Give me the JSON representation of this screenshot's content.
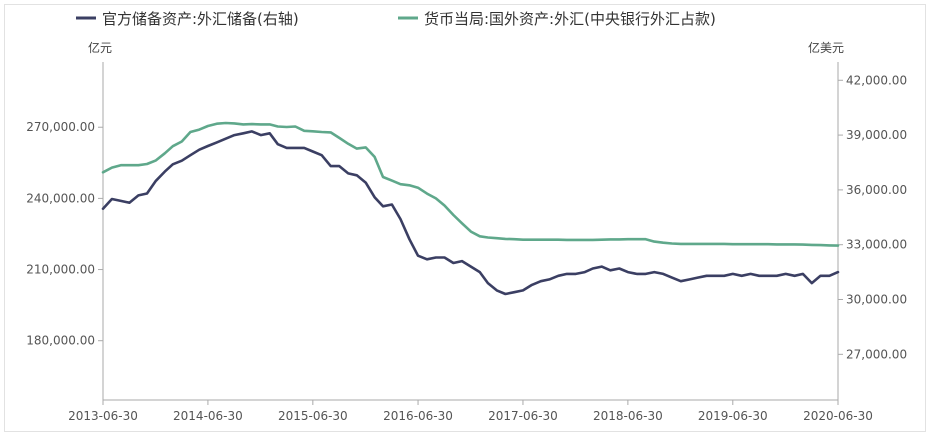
{
  "chart_data": {
    "type": "line",
    "title": "",
    "legend_position": "top-left",
    "left_unit": "亿元",
    "right_unit": "亿美元",
    "left_axis": {
      "ylim": [
        155000,
        297500
      ],
      "ticks": [
        180000,
        210000,
        240000,
        270000
      ],
      "tick_labels": [
        "180,000.00",
        "210,000.00",
        "240,000.00",
        "270,000.00"
      ]
    },
    "right_axis": {
      "ylim": [
        24500,
        43000
      ],
      "ticks": [
        27000,
        30000,
        33000,
        36000,
        39000,
        42000
      ],
      "tick_labels": [
        "27,000.00",
        "30,000.00",
        "33,000.00",
        "36,000.00",
        "39,000.00",
        "42,000.00"
      ]
    },
    "x_axis": {
      "range": [
        "2013-06-30",
        "2020-06-30"
      ],
      "tick_labels": [
        "2013-06-30",
        "2014-06-30",
        "2015-06-30",
        "2016-06-30",
        "2017-06-30",
        "2018-06-30",
        "2019-06-30",
        "2020-06-30"
      ]
    },
    "series": [
      {
        "name": "官方储备资产:外汇储备(右轴)",
        "axis": "right",
        "color": "#3b3f63",
        "x": [
          "2013-06",
          "2013-07",
          "2013-08",
          "2013-09",
          "2013-10",
          "2013-11",
          "2013-12",
          "2014-01",
          "2014-02",
          "2014-03",
          "2014-04",
          "2014-05",
          "2014-06",
          "2014-07",
          "2014-08",
          "2014-09",
          "2014-10",
          "2014-11",
          "2014-12",
          "2015-01",
          "2015-02",
          "2015-03",
          "2015-04",
          "2015-05",
          "2015-06",
          "2015-07",
          "2015-08",
          "2015-09",
          "2015-10",
          "2015-11",
          "2015-12",
          "2016-01",
          "2016-02",
          "2016-03",
          "2016-04",
          "2016-05",
          "2016-06",
          "2016-07",
          "2016-08",
          "2016-09",
          "2016-10",
          "2016-11",
          "2016-12",
          "2017-01",
          "2017-02",
          "2017-03",
          "2017-04",
          "2017-05",
          "2017-06",
          "2017-07",
          "2017-08",
          "2017-09",
          "2017-10",
          "2017-11",
          "2017-12",
          "2018-01",
          "2018-02",
          "2018-03",
          "2018-04",
          "2018-05",
          "2018-06",
          "2018-07",
          "2018-08",
          "2018-09",
          "2018-10",
          "2018-11",
          "2018-12",
          "2019-01",
          "2019-02",
          "2019-03",
          "2019-04",
          "2019-05",
          "2019-06",
          "2019-07",
          "2019-08",
          "2019-09",
          "2019-10",
          "2019-11",
          "2019-12",
          "2020-01",
          "2020-02",
          "2020-03",
          "2020-04",
          "2020-05",
          "2020-06"
        ],
        "values": [
          34970,
          35500,
          35400,
          35300,
          35700,
          35800,
          36500,
          37000,
          37400,
          37600,
          37900,
          38200,
          38400,
          38600,
          38800,
          39000,
          39100,
          39200,
          39000,
          39100,
          38500,
          38300,
          38300,
          38300,
          38100,
          37900,
          37300,
          37300,
          36900,
          36800,
          36400,
          35600,
          35100,
          35200,
          34400,
          33300,
          32400,
          32200,
          32300,
          32300,
          32000,
          32100,
          31800,
          31500,
          30900,
          30500,
          30300,
          30400,
          30500,
          30800,
          31000,
          31100,
          31300,
          31400,
          31400,
          31500,
          31700,
          31800,
          31600,
          31700,
          31500,
          31400,
          31400,
          31500,
          31400,
          31200,
          31000,
          31100,
          31200,
          31300,
          31300,
          31300,
          31400,
          31300,
          31400,
          31300,
          31300,
          31300,
          31400,
          31300,
          31400,
          30900,
          31300,
          31300,
          31500
        ]
      },
      {
        "name": "货币当局:国外资产:外汇(中央银行外汇占款)",
        "axis": "left",
        "color": "#5fa88b",
        "x": [
          "2013-06",
          "2013-07",
          "2013-08",
          "2013-09",
          "2013-10",
          "2013-11",
          "2013-12",
          "2014-01",
          "2014-02",
          "2014-03",
          "2014-04",
          "2014-05",
          "2014-06",
          "2014-07",
          "2014-08",
          "2014-09",
          "2014-10",
          "2014-11",
          "2014-12",
          "2015-01",
          "2015-02",
          "2015-03",
          "2015-04",
          "2015-05",
          "2015-06",
          "2015-07",
          "2015-08",
          "2015-09",
          "2015-10",
          "2015-11",
          "2015-12",
          "2016-01",
          "2016-02",
          "2016-03",
          "2016-04",
          "2016-05",
          "2016-06",
          "2016-07",
          "2016-08",
          "2016-09",
          "2016-10",
          "2016-11",
          "2016-12",
          "2017-01",
          "2017-02",
          "2017-03",
          "2017-04",
          "2017-05",
          "2017-06",
          "2017-07",
          "2017-08",
          "2017-09",
          "2017-10",
          "2017-11",
          "2017-12",
          "2018-01",
          "2018-02",
          "2018-03",
          "2018-04",
          "2018-05",
          "2018-06",
          "2018-07",
          "2018-08",
          "2018-09",
          "2018-10",
          "2018-11",
          "2018-12",
          "2019-01",
          "2019-02",
          "2019-03",
          "2019-04",
          "2019-05",
          "2019-06",
          "2019-07",
          "2019-08",
          "2019-09",
          "2019-10",
          "2019-11",
          "2019-12",
          "2020-01",
          "2020-02",
          "2020-03",
          "2020-04",
          "2020-05",
          "2020-06"
        ],
        "values": [
          251000,
          253000,
          254000,
          254000,
          254000,
          254500,
          256000,
          259000,
          262000,
          264000,
          268000,
          269000,
          270500,
          271500,
          271800,
          271600,
          271200,
          271300,
          271200,
          271200,
          270300,
          270100,
          270300,
          268500,
          268300,
          268000,
          267800,
          265500,
          263000,
          261000,
          261500,
          257500,
          249000,
          247500,
          246000,
          245500,
          244500,
          242000,
          240000,
          237000,
          233000,
          229500,
          226000,
          224000,
          223500,
          223200,
          222900,
          222800,
          222600,
          222600,
          222600,
          222600,
          222600,
          222500,
          222500,
          222500,
          222500,
          222600,
          222700,
          222700,
          222800,
          222800,
          222800,
          221800,
          221300,
          221000,
          220800,
          220800,
          220800,
          220800,
          220800,
          220800,
          220700,
          220700,
          220700,
          220700,
          220700,
          220600,
          220600,
          220600,
          220500,
          220400,
          220300,
          220200,
          220100
        ]
      }
    ]
  }
}
